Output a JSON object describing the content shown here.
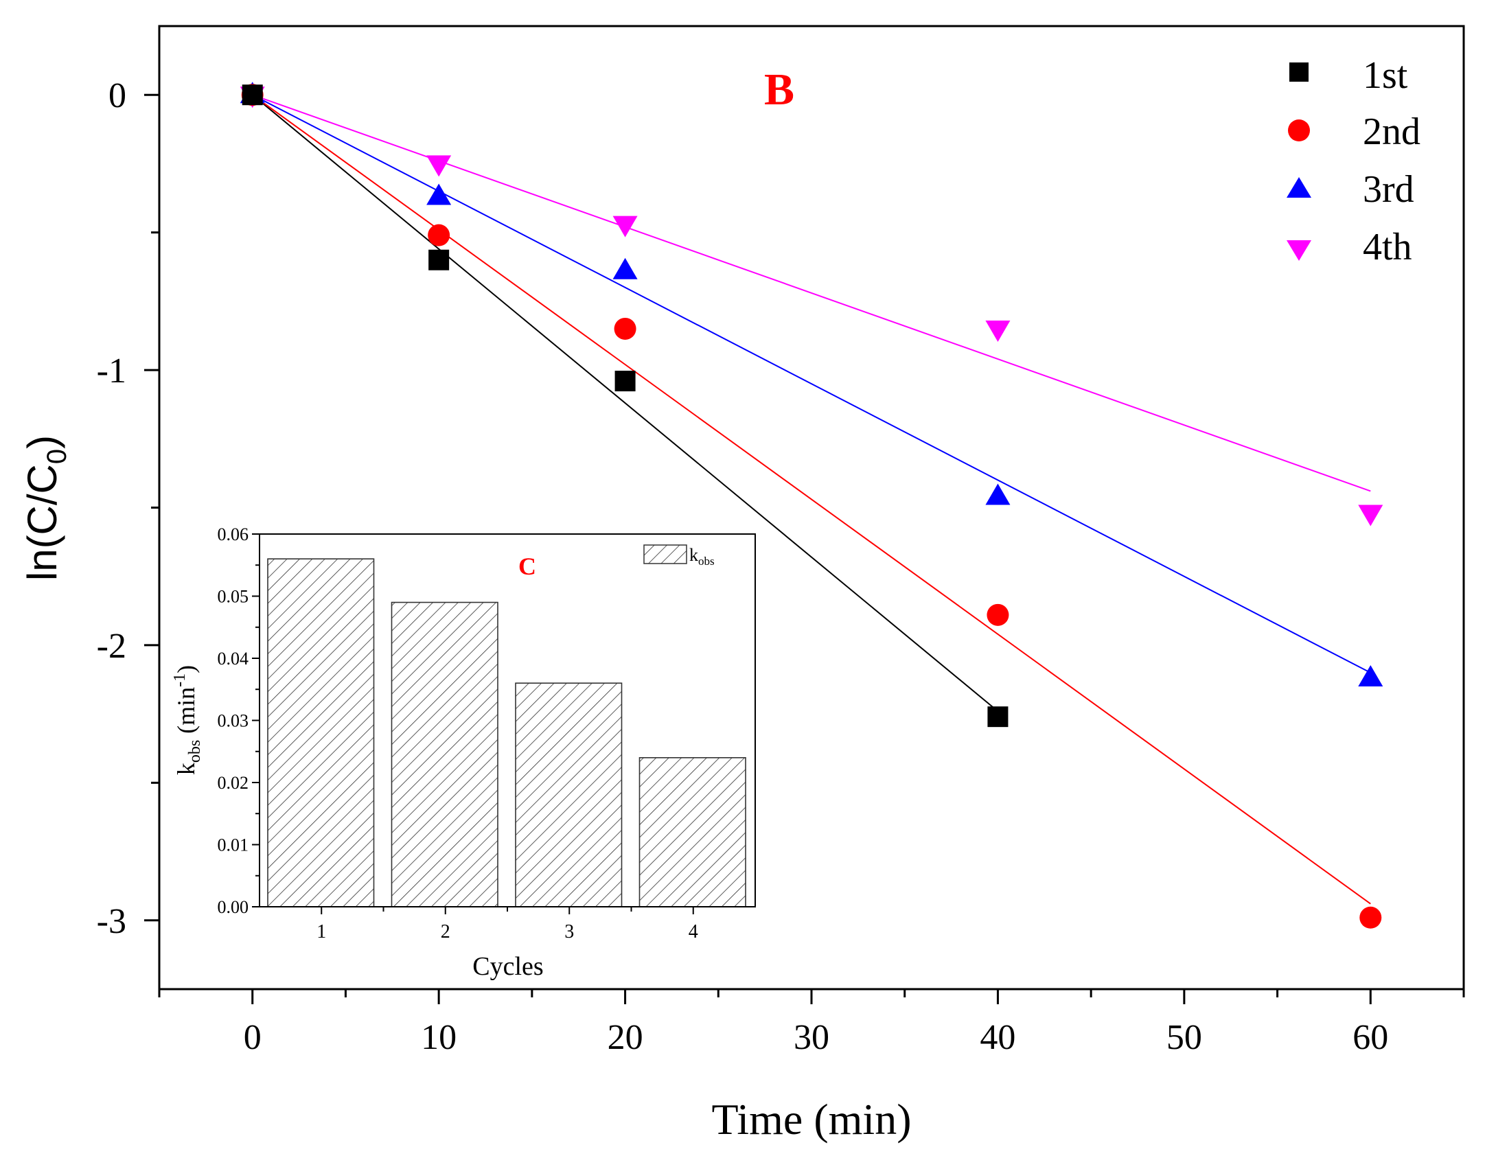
{
  "chart_data": [
    {
      "type": "scatter",
      "panel_label": "B",
      "xlabel": "Time (min)",
      "ylabel_base": "ln(C/C",
      "ylabel_sub": "0",
      "ylabel_close": ")",
      "xlim": [
        -5,
        65
      ],
      "ylim": [
        -3.25,
        0.25
      ],
      "xticks": [
        0,
        10,
        20,
        30,
        40,
        50,
        60
      ],
      "xtick_labels": [
        "0",
        "10",
        "20",
        "30",
        "40",
        "50",
        "60"
      ],
      "yticks": [
        0,
        -1,
        -2,
        -3
      ],
      "ytick_labels": [
        "0",
        "-1",
        "-2",
        "-3"
      ],
      "legend_position": "top-right",
      "series": [
        {
          "name": "1st",
          "marker": "square",
          "color": "#000000",
          "x": [
            0,
            10,
            20,
            40
          ],
          "y": [
            0,
            -0.6,
            -1.04,
            -2.26
          ],
          "fit": {
            "x": [
              0,
              40
            ],
            "y": [
              0,
              -2.24
            ]
          }
        },
        {
          "name": "2nd",
          "marker": "circle",
          "color": "#ff0000",
          "x": [
            0,
            10,
            20,
            40,
            60
          ],
          "y": [
            0,
            -0.51,
            -0.85,
            -1.89,
            -2.99
          ],
          "fit": {
            "x": [
              0,
              60
            ],
            "y": [
              0,
              -2.94
            ]
          }
        },
        {
          "name": "3rd",
          "marker": "triangle-up",
          "color": "#0000ff",
          "x": [
            0,
            10,
            20,
            40,
            60
          ],
          "y": [
            0,
            -0.37,
            -0.64,
            -1.46,
            -2.12
          ],
          "fit": {
            "x": [
              0,
              60
            ],
            "y": [
              0,
              -2.1
            ]
          }
        },
        {
          "name": "4th",
          "marker": "triangle-down",
          "color": "#ff00ff",
          "x": [
            0,
            10,
            20,
            40,
            60
          ],
          "y": [
            0,
            -0.25,
            -0.47,
            -0.85,
            -1.52
          ],
          "fit": {
            "x": [
              0,
              60
            ],
            "y": [
              0,
              -1.44
            ]
          }
        }
      ]
    },
    {
      "type": "bar",
      "panel_label": "C",
      "xlabel": "Cycles",
      "ylabel_base": "k",
      "ylabel_sub": "obs",
      "ylabel_unit": " (min",
      "ylabel_sup": "-1",
      "ylabel_close": ")",
      "legend_label": "k",
      "legend_sub": "obs",
      "categories": [
        "1",
        "2",
        "3",
        "4"
      ],
      "values": [
        0.056,
        0.049,
        0.036,
        0.024
      ],
      "ylim": [
        0,
        0.06
      ],
      "yticks": [
        0,
        0.01,
        0.02,
        0.03,
        0.04,
        0.05,
        0.06
      ],
      "ytick_labels": [
        "0.00",
        "0.01",
        "0.02",
        "0.03",
        "0.04",
        "0.05",
        "0.06"
      ],
      "fill": "hatched"
    }
  ]
}
